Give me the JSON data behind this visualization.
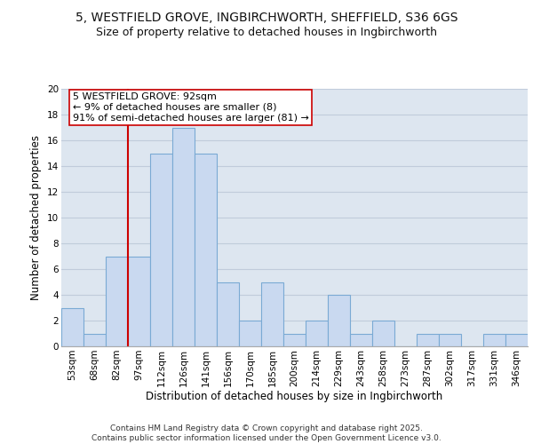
{
  "title_line1": "5, WESTFIELD GROVE, INGBIRCHWORTH, SHEFFIELD, S36 6GS",
  "title_line2": "Size of property relative to detached houses in Ingbirchworth",
  "xlabel": "Distribution of detached houses by size in Ingbirchworth",
  "ylabel": "Number of detached properties",
  "bar_labels": [
    "53sqm",
    "68sqm",
    "82sqm",
    "97sqm",
    "112sqm",
    "126sqm",
    "141sqm",
    "156sqm",
    "170sqm",
    "185sqm",
    "200sqm",
    "214sqm",
    "229sqm",
    "243sqm",
    "258sqm",
    "273sqm",
    "287sqm",
    "302sqm",
    "317sqm",
    "331sqm",
    "346sqm"
  ],
  "bar_values": [
    3,
    1,
    7,
    7,
    15,
    17,
    15,
    5,
    2,
    5,
    1,
    2,
    4,
    1,
    2,
    0,
    1,
    1,
    0,
    1,
    1
  ],
  "bar_color": "#c9d9f0",
  "bar_edge_color": "#7aaad4",
  "vline_x": 2.5,
  "vline_color": "#cc0000",
  "annotation_text": "5 WESTFIELD GROVE: 92sqm\n← 9% of detached houses are smaller (8)\n91% of semi-detached houses are larger (81) →",
  "annotation_box_color": "#ffffff",
  "annotation_box_edge_color": "#cc0000",
  "ylim": [
    0,
    20
  ],
  "yticks": [
    0,
    2,
    4,
    6,
    8,
    10,
    12,
    14,
    16,
    18,
    20
  ],
  "grid_color": "#c0ccdb",
  "background_color": "#dde6f0",
  "footer_text": "Contains HM Land Registry data © Crown copyright and database right 2025.\nContains public sector information licensed under the Open Government Licence v3.0.",
  "title_fontsize": 10,
  "subtitle_fontsize": 9,
  "axis_label_fontsize": 8.5,
  "tick_fontsize": 7.5,
  "annotation_fontsize": 8,
  "footer_fontsize": 6.5
}
